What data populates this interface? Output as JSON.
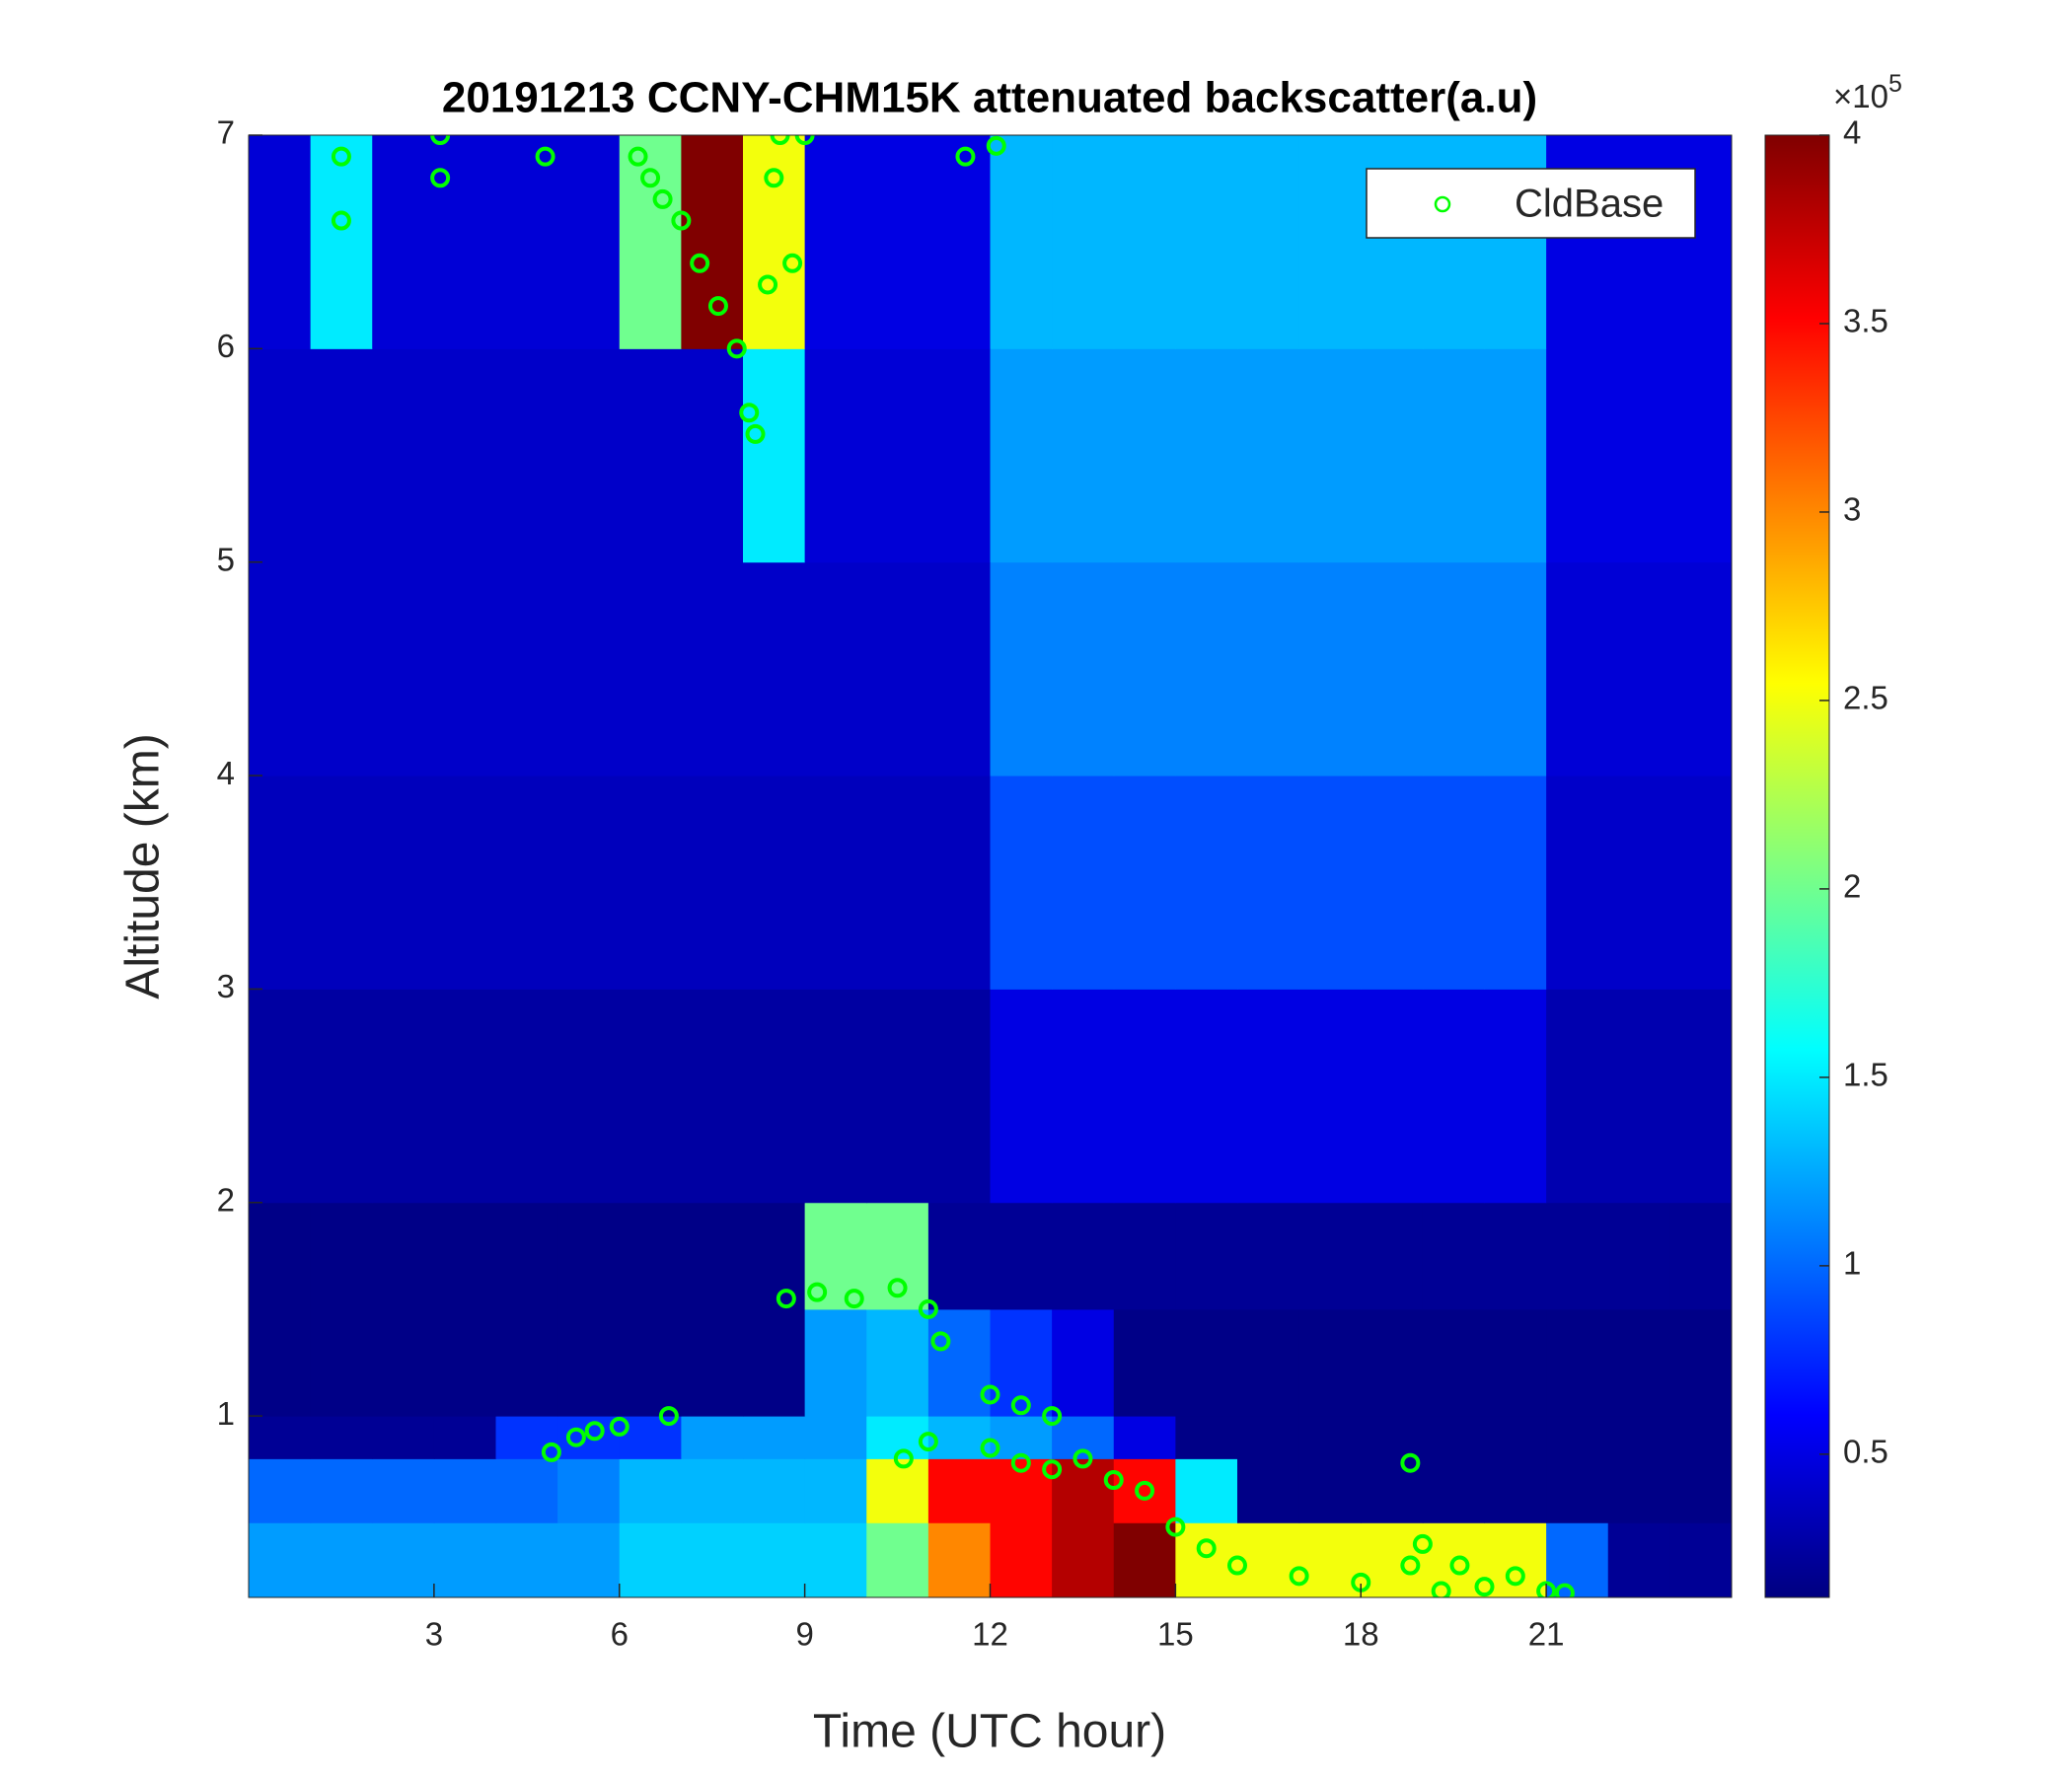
{
  "chart_data": {
    "type": "heatmap",
    "title": "20191213 CCNY-CHM15K attenuated backscatter(a.u)",
    "xlabel": "Time (UTC hour)",
    "ylabel": "Altitude (km)",
    "xlim": [
      0,
      24
    ],
    "ylim": [
      0.15,
      7
    ],
    "xticks": [
      3,
      6,
      9,
      12,
      15,
      18,
      21
    ],
    "yticks": [
      1,
      2,
      3,
      4,
      5,
      6,
      7
    ],
    "colormap": "jet",
    "clim": [
      0.12,
      4
    ],
    "colorbar_ticks": [
      0.5,
      1,
      1.5,
      2,
      2.5,
      3,
      3.5,
      4
    ],
    "colorbar_multiplier": "×10",
    "colorbar_exponent": "5",
    "x_edges": [
      0,
      1,
      2,
      3,
      4,
      5,
      6,
      7,
      8,
      9,
      10,
      11,
      12,
      13,
      14,
      15,
      16,
      17,
      18,
      19,
      20,
      21,
      22,
      23,
      24
    ],
    "y_edges": [
      0.15,
      0.5,
      0.8,
      1.0,
      1.5,
      2,
      3,
      4,
      5,
      6,
      7
    ],
    "z": [
      [
        1.2,
        1.2,
        1.2,
        1.2,
        1.2,
        1.2,
        1.4,
        1.4,
        1.4,
        1.4,
        2,
        3,
        3.5,
        3.8,
        4,
        2.5,
        2.5,
        2.5,
        2.5,
        2.5,
        2.5,
        1,
        0.2,
        0.2
      ],
      [
        1.0,
        1.0,
        1.0,
        1.0,
        1.0,
        1.1,
        1.3,
        1.3,
        1.3,
        1.3,
        2.5,
        3.5,
        3.5,
        3.8,
        3.5,
        1.5,
        0.15,
        0.15,
        0.15,
        0.15,
        0.15,
        0.15,
        0.15,
        0.15
      ],
      [
        0.2,
        0.2,
        0.2,
        0.2,
        0.8,
        0.8,
        0.8,
        1.2,
        1.2,
        1.2,
        1.5,
        1.3,
        1.2,
        1.0,
        0.5,
        0.15,
        0.15,
        0.15,
        0.15,
        0.15,
        0.15,
        0.15,
        0.15,
        0.15
      ],
      [
        0.15,
        0.15,
        0.15,
        0.15,
        0.15,
        0.15,
        0.15,
        0.15,
        0.15,
        1.2,
        1.3,
        1.0,
        0.8,
        0.5,
        0.15,
        0.15,
        0.15,
        0.15,
        0.15,
        0.15,
        0.15,
        0.15,
        0.15,
        0.15
      ],
      [
        0.15,
        0.15,
        0.15,
        0.15,
        0.15,
        0.15,
        0.15,
        0.15,
        0.15,
        2.0,
        2.0,
        0.2,
        0.2,
        0.2,
        0.2,
        0.2,
        0.2,
        0.2,
        0.2,
        0.2,
        0.2,
        0.2,
        0.2,
        0.2
      ],
      [
        0.25,
        0.25,
        0.25,
        0.25,
        0.25,
        0.25,
        0.25,
        0.25,
        0.25,
        0.25,
        0.25,
        0.25,
        0.5,
        0.5,
        0.5,
        0.5,
        0.5,
        0.5,
        0.5,
        0.5,
        0.5,
        0.3,
        0.3,
        0.3
      ],
      [
        0.35,
        0.35,
        0.35,
        0.35,
        0.35,
        0.35,
        0.35,
        0.35,
        0.35,
        0.35,
        0.35,
        0.35,
        0.9,
        0.9,
        0.9,
        0.9,
        0.9,
        0.9,
        0.9,
        0.9,
        0.9,
        0.4,
        0.4,
        0.4
      ],
      [
        0.4,
        0.4,
        0.4,
        0.4,
        0.4,
        0.4,
        0.4,
        0.4,
        0.4,
        0.4,
        0.4,
        0.4,
        1.1,
        1.1,
        1.1,
        1.1,
        1.1,
        1.1,
        1.1,
        1.1,
        1.1,
        0.45,
        0.45,
        0.45
      ],
      [
        0.4,
        0.4,
        0.4,
        0.4,
        0.4,
        0.4,
        0.4,
        0.4,
        1.5,
        0.45,
        0.45,
        0.45,
        1.2,
        1.2,
        1.2,
        1.2,
        1.2,
        1.2,
        1.2,
        1.2,
        1.2,
        0.5,
        0.5,
        0.5
      ],
      [
        0.45,
        1.5,
        0.45,
        0.45,
        0.45,
        0.45,
        2,
        4,
        2.5,
        0.5,
        0.5,
        0.5,
        1.3,
        1.3,
        1.3,
        1.3,
        1.3,
        1.3,
        1.3,
        1.3,
        1.3,
        0.5,
        0.5,
        0.5
      ]
    ],
    "legend": "upper right",
    "series": [
      {
        "name": "CldBase",
        "color": "#00ff00",
        "marker": "circle",
        "x": [
          1.5,
          1.5,
          3.1,
          3.1,
          4.8,
          6.3,
          6.5,
          6.7,
          7.0,
          7.3,
          7.6,
          7.9,
          8.1,
          8.2,
          8.4,
          8.5,
          8.6,
          8.8,
          9.0,
          11.6,
          12.1,
          4.9,
          5.3,
          5.6,
          6.0,
          6.8,
          8.7,
          9.2,
          9.8,
          10.5,
          11.0,
          11.2,
          10.6,
          11.0,
          12.0,
          12.5,
          13.0,
          12.0,
          12.5,
          13.0,
          13.5,
          14.0,
          14.5,
          15.0,
          15.5,
          16.0,
          17.0,
          18.0,
          18.8,
          18.8,
          19.0,
          19.3,
          19.6,
          20.0,
          20.5,
          21.0,
          21.3
        ],
        "y": [
          6.6,
          6.9,
          6.8,
          7.0,
          6.9,
          6.9,
          6.8,
          6.7,
          6.6,
          6.4,
          6.2,
          6.0,
          5.7,
          5.6,
          6.3,
          6.8,
          7.0,
          6.4,
          7.0,
          6.9,
          6.95,
          0.83,
          0.9,
          0.93,
          0.95,
          1.0,
          1.55,
          1.58,
          1.55,
          1.6,
          1.5,
          1.35,
          0.8,
          0.88,
          1.1,
          1.05,
          1.0,
          0.85,
          0.78,
          0.75,
          0.8,
          0.7,
          0.65,
          0.48,
          0.38,
          0.3,
          0.25,
          0.22,
          0.3,
          0.78,
          0.4,
          0.18,
          0.3,
          0.2,
          0.25,
          0.18,
          0.17
        ]
      }
    ]
  }
}
